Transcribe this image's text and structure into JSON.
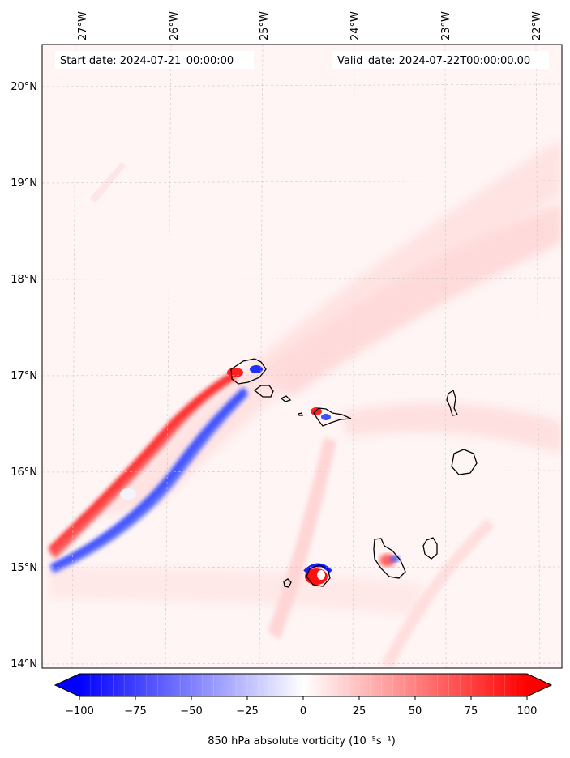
{
  "map": {
    "start_label": "Start date: 2024-07-21_00:00:00",
    "valid_label": "Valid_date: 2024-07-22T00:00:00.00",
    "lon_ticks": [
      "27°W",
      "26°W",
      "25°W",
      "24°W",
      "23°W",
      "22°W"
    ],
    "lat_ticks": [
      "20°N",
      "19°N",
      "18°N",
      "17°N",
      "16°N",
      "15°N",
      "14°N"
    ],
    "lon_values": [
      -27,
      -26,
      -25,
      -24,
      -23,
      -22
    ],
    "lat_values": [
      20,
      19,
      18,
      17,
      16,
      15,
      14
    ],
    "lon_range": [
      -27.35,
      -21.7
    ],
    "lat_range": [
      13.95,
      20.4
    ],
    "islands": [
      "Santo Antão",
      "São Vicente",
      "Santa Luzia",
      "São Nicolau",
      "Sal",
      "Boa Vista",
      "Santiago",
      "Maio",
      "Fogo",
      "Brava"
    ]
  },
  "colorbar": {
    "ticks": [
      "−100",
      "−75",
      "−50",
      "−25",
      "0",
      "25",
      "50",
      "75",
      "100"
    ],
    "values": [
      -100,
      -75,
      -50,
      -25,
      0,
      25,
      50,
      75,
      100
    ],
    "label": "850 hPa absolute vorticity (10⁻⁵s⁻¹)",
    "levels": 40,
    "cmap": "bwr",
    "extend": "both"
  },
  "colors": {
    "positive": "#ff0000",
    "negative": "#0000ff",
    "neutral": "#ffffff",
    "background_field": "#fff5f5"
  }
}
